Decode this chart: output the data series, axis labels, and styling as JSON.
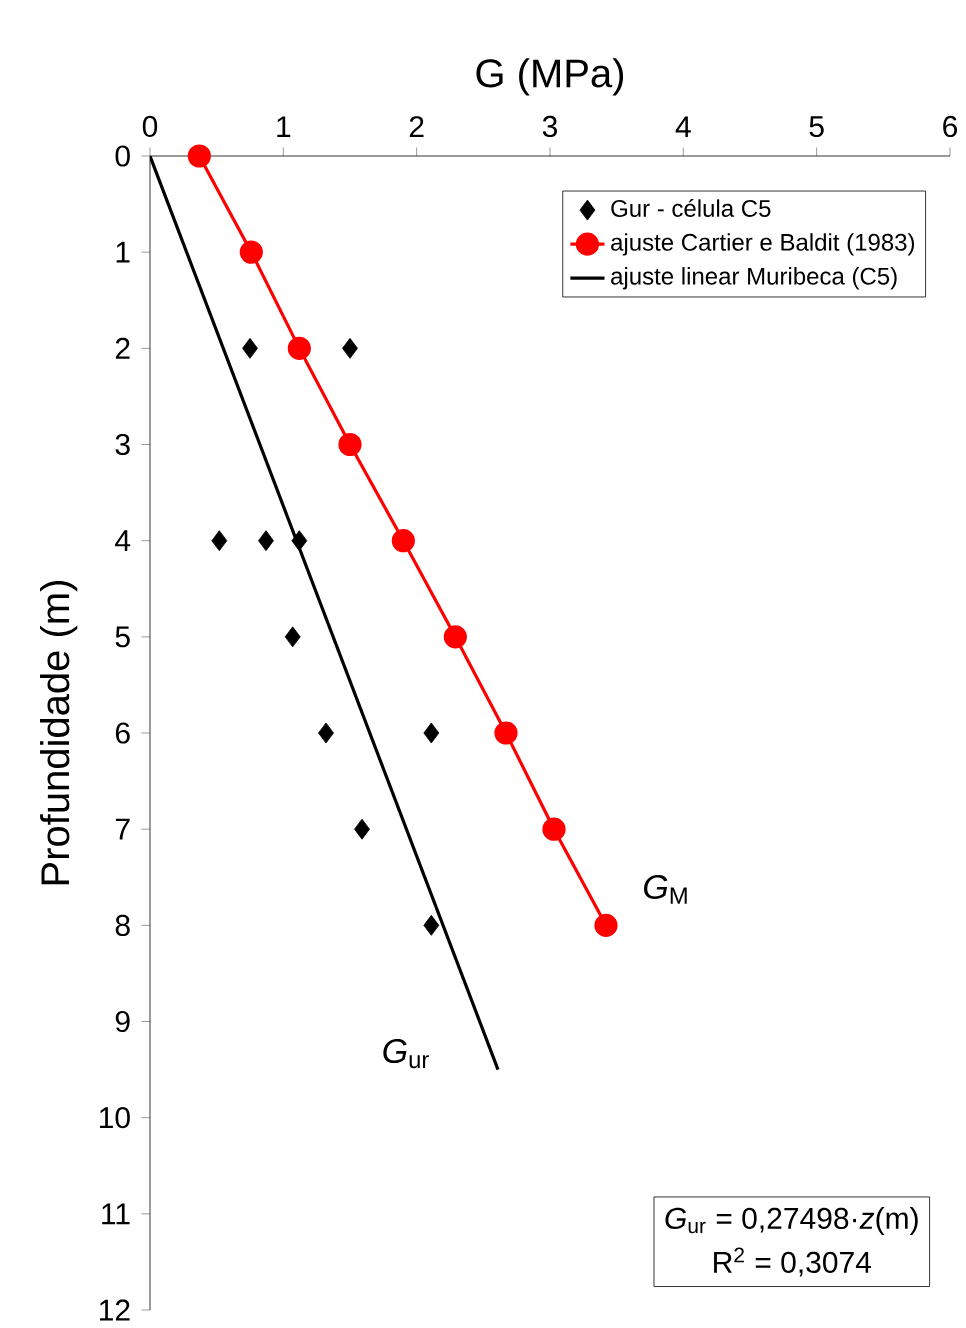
{
  "chart_data": {
    "type": "scatter",
    "xlabel": "G (MPa)",
    "ylabel": "Profundidade (m)",
    "xlim": [
      0,
      6
    ],
    "ylim": [
      12,
      0
    ],
    "xticks": [
      0,
      1,
      2,
      3,
      4,
      5,
      6
    ],
    "yticks": [
      0,
      1,
      2,
      3,
      4,
      5,
      6,
      7,
      8,
      9,
      10,
      11,
      12
    ],
    "grid": false,
    "legend": "top right",
    "series": [
      {
        "name": "Gur - célula C5",
        "marker": "diamond",
        "color": "#000000",
        "x": [
          0.75,
          1.5,
          0.52,
          0.87,
          1.12,
          1.07,
          1.32,
          2.11,
          1.59,
          2.11
        ],
        "values": [
          2,
          2,
          4,
          4,
          4,
          5,
          6,
          6,
          7,
          8
        ]
      },
      {
        "name": "ajuste Cartier e Baldit (1983)",
        "type": "line",
        "marker": "circle",
        "color": "#ff0000",
        "x": [
          0.37,
          0.76,
          1.12,
          1.5,
          1.9,
          2.29,
          2.67,
          3.03,
          3.42
        ],
        "values": [
          0,
          1,
          2,
          3,
          4,
          5,
          6,
          7,
          8
        ]
      },
      {
        "name": "ajuste linear Muribeca (C5)",
        "type": "line",
        "marker": "none",
        "color": "#000000",
        "x": [
          0,
          2.61
        ],
        "values": [
          0,
          9.5
        ]
      }
    ],
    "annotations": [
      "*G*$_{M}$",
      "*G*$_{ur}$",
      "*G*$_{ur}$ = 0,27498·*z*(m)",
      "R$^{2}$ = 0,3074"
    ]
  }
}
